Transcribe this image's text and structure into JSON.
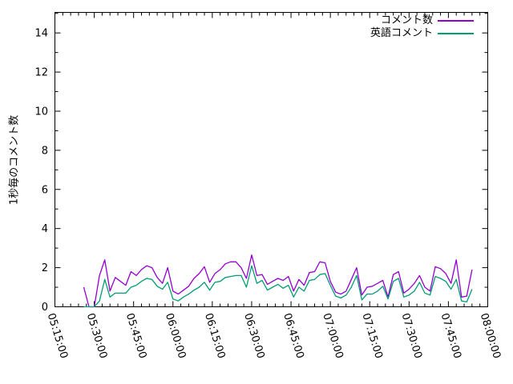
{
  "chart_data": {
    "type": "line",
    "title": "",
    "xlabel": "",
    "ylabel": "1秒毎のコメント数",
    "legend_position": "top-right-inside",
    "grid": false,
    "xlim": [
      "05:15:00",
      "08:00:00"
    ],
    "ylim": [
      0,
      15.05
    ],
    "y_ticks": [
      0,
      2,
      4,
      6,
      8,
      10,
      12,
      14
    ],
    "y_minor_step": 1,
    "x_tick_labels": [
      "05:15:00",
      "05:30:00",
      "05:45:00",
      "06:00:00",
      "06:15:00",
      "06:30:00",
      "06:45:00",
      "07:00:00",
      "07:15:00",
      "07:30:00",
      "07:45:00",
      "08:00:00"
    ],
    "x_major_step_minutes": 15,
    "x_minor_step_minutes": 3,
    "x_tick_label_rotation_deg": 73,
    "x": [
      "05:26:00",
      "05:28:00",
      "05:30:00",
      "05:32:00",
      "05:34:00",
      "05:36:00",
      "05:38:00",
      "05:40:00",
      "05:42:00",
      "05:44:00",
      "05:46:00",
      "05:48:00",
      "05:50:00",
      "05:52:00",
      "05:54:00",
      "05:56:00",
      "05:58:00",
      "06:00:00",
      "06:02:00",
      "06:04:00",
      "06:06:00",
      "06:08:00",
      "06:10:00",
      "06:12:00",
      "06:14:00",
      "06:16:00",
      "06:18:00",
      "06:20:00",
      "06:22:00",
      "06:24:00",
      "06:26:00",
      "06:28:00",
      "06:30:00",
      "06:32:00",
      "06:34:00",
      "06:36:00",
      "06:38:00",
      "06:40:00",
      "06:42:00",
      "06:44:00",
      "06:46:00",
      "06:48:00",
      "06:50:00",
      "06:52:00",
      "06:54:00",
      "06:56:00",
      "06:58:00",
      "07:00:00",
      "07:02:00",
      "07:04:00",
      "07:06:00",
      "07:08:00",
      "07:10:00",
      "07:12:00",
      "07:14:00",
      "07:16:00",
      "07:18:00",
      "07:20:00",
      "07:22:00",
      "07:24:00",
      "07:26:00",
      "07:28:00",
      "07:30:00",
      "07:32:00",
      "07:34:00",
      "07:36:00",
      "07:38:00",
      "07:40:00",
      "07:42:00",
      "07:44:00",
      "07:46:00",
      "07:48:00",
      "07:50:00",
      "07:52:00",
      "07:54:00"
    ],
    "series": [
      {
        "name": "コメント数",
        "color": "#9400d3",
        "values": [
          1.0,
          0,
          0,
          1.6,
          2.4,
          0.8,
          1.5,
          1.3,
          1.1,
          1.8,
          1.6,
          1.9,
          2.1,
          2.0,
          1.5,
          1.2,
          2.0,
          0.8,
          0.65,
          0.85,
          1.05,
          1.45,
          1.7,
          2.05,
          1.25,
          1.7,
          1.9,
          2.2,
          2.3,
          2.3,
          2.0,
          1.45,
          2.65,
          1.6,
          1.65,
          1.15,
          1.3,
          1.45,
          1.35,
          1.55,
          0.8,
          1.4,
          1.1,
          1.75,
          1.8,
          2.3,
          2.25,
          1.3,
          0.75,
          0.65,
          0.8,
          1.4,
          2.0,
          0.6,
          1.0,
          1.05,
          1.2,
          1.35,
          0.5,
          1.65,
          1.8,
          0.7,
          0.9,
          1.2,
          1.6,
          1.0,
          0.8,
          2.05,
          1.95,
          1.7,
          1.2,
          2.4,
          0.5,
          0.55,
          1.9
        ]
      },
      {
        "name": "英語コメント",
        "color": "#009e73",
        "values": [
          0,
          0,
          0,
          0.3,
          1.4,
          0.5,
          0.7,
          0.7,
          0.7,
          1.0,
          1.1,
          1.3,
          1.45,
          1.4,
          1.05,
          0.9,
          1.25,
          0.4,
          0.3,
          0.5,
          0.65,
          0.85,
          1.0,
          1.25,
          0.85,
          1.25,
          1.3,
          1.5,
          1.55,
          1.6,
          1.6,
          1.0,
          2.1,
          1.2,
          1.35,
          0.85,
          1.0,
          1.15,
          0.95,
          1.1,
          0.5,
          1.0,
          0.8,
          1.35,
          1.4,
          1.65,
          1.7,
          1.1,
          0.55,
          0.45,
          0.6,
          1.0,
          1.6,
          0.35,
          0.65,
          0.65,
          0.8,
          1.05,
          0.4,
          1.3,
          1.45,
          0.5,
          0.6,
          0.8,
          1.25,
          0.7,
          0.6,
          1.55,
          1.45,
          1.3,
          0.9,
          1.4,
          0.3,
          0.25,
          0.9
        ]
      }
    ]
  },
  "colors": {
    "background": "#ffffff",
    "axis": "#000000",
    "text": "#000000",
    "series_comment_count": "#9400d3",
    "series_english_comment": "#009e73"
  }
}
